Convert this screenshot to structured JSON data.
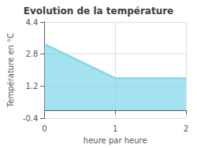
{
  "chart_data": {
    "type": "area",
    "title": "Evolution de la température",
    "xlabel": "heure par heure",
    "ylabel": "Température en °C",
    "x": [
      0,
      1,
      2
    ],
    "values": [
      3.3,
      1.6,
      1.6
    ],
    "color": "#7dd6e8",
    "xlim": [
      0,
      2
    ],
    "xticks": [
      0,
      1,
      2
    ],
    "ylim": [
      -0.4,
      4.4
    ],
    "yticks": [
      -0.4,
      1.2,
      2.8,
      4.4
    ],
    "grid": true
  }
}
